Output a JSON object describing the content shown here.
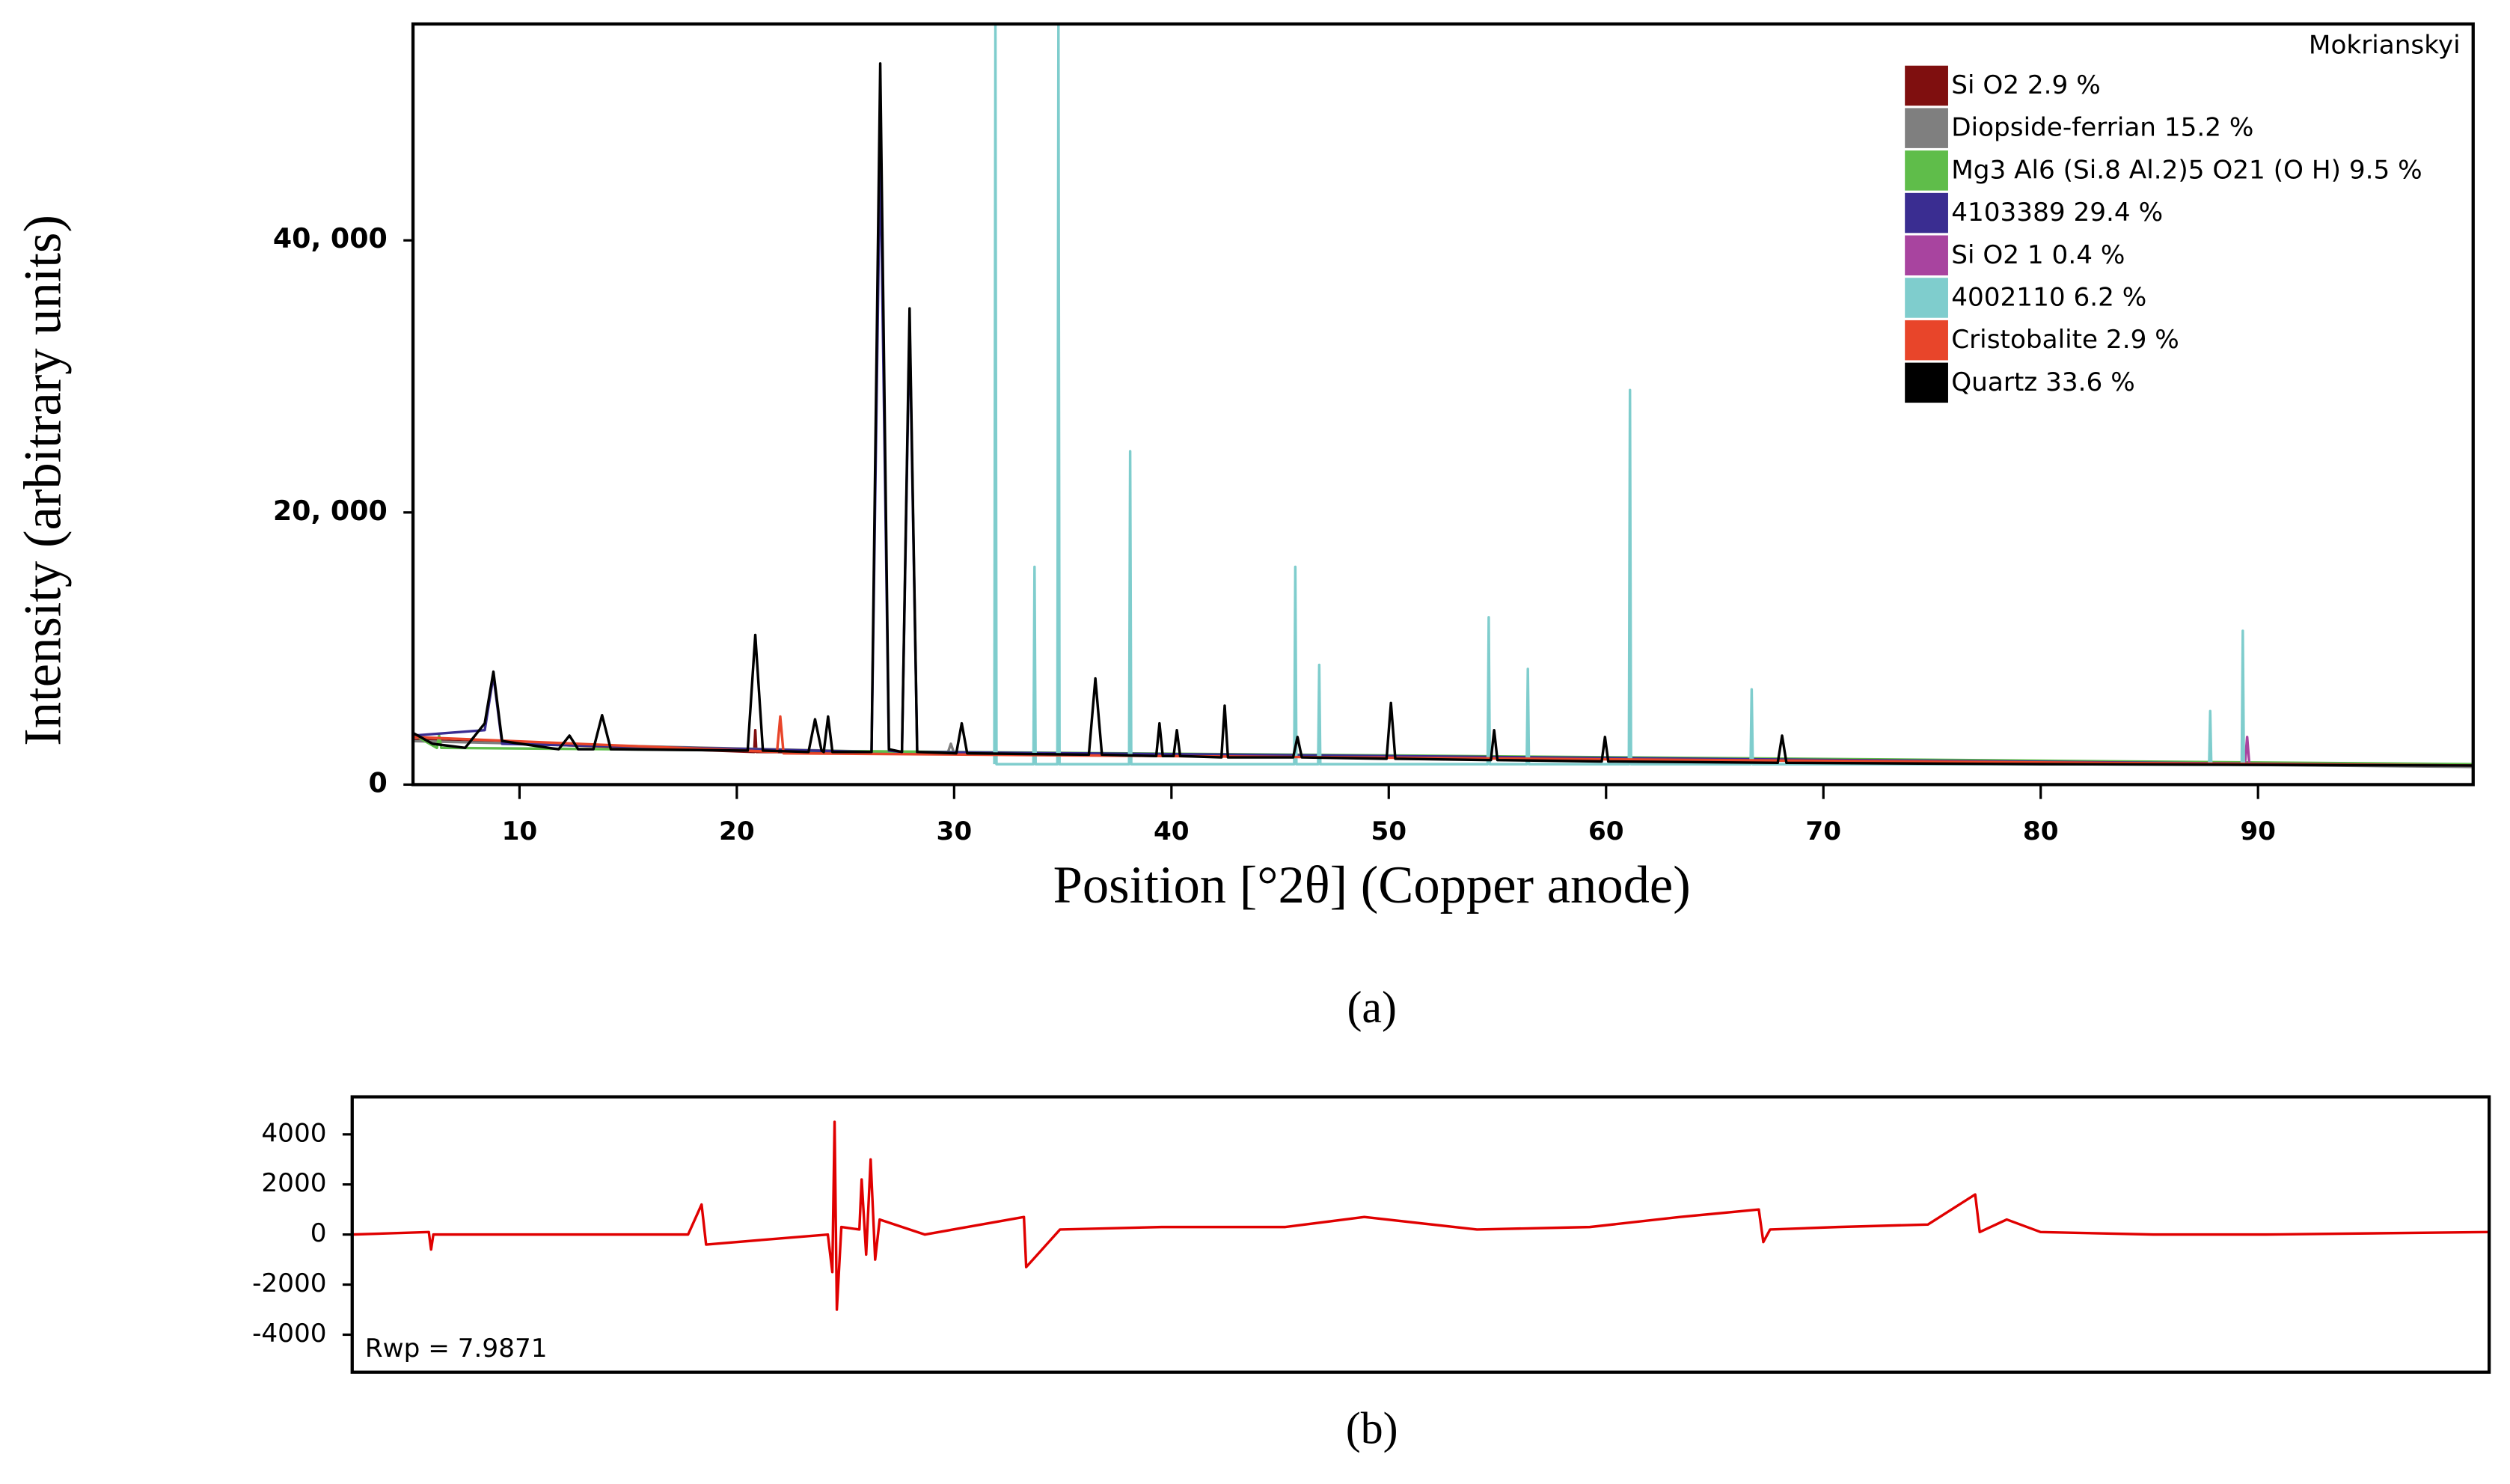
{
  "chart_data": [
    {
      "type": "line",
      "title": "Mokrianskyi",
      "x_label": "Position [°2θ] (Copper anode)",
      "y_label": "Intensity (arbitrary units)",
      "caption": "(a)",
      "xlim": [
        5.1,
        99.9
      ],
      "ylim": [
        0,
        55900
      ],
      "xticks": [
        10,
        20,
        30,
        40,
        50,
        60,
        70,
        80,
        90
      ],
      "yticks": [
        0,
        {
          "value": 20000,
          "label": "20, 000"
        },
        {
          "value": 40000,
          "label": "40, 000"
        }
      ],
      "legend": "upper right",
      "grid": false,
      "series": [
        {
          "name": "Si O2 2.9 %",
          "color": "#7f0f0f",
          "x": [
            5.1,
            20.8,
            20.85,
            20.9,
            99.9
          ],
          "values": [
            3300,
            2400,
            4000,
            2400,
            1400
          ]
        },
        {
          "name": "Diopside-ferrian 15.2 %",
          "color": "#7f7f7f",
          "x": [
            5.1,
            29.7,
            29.85,
            30,
            99.9
          ],
          "values": [
            3200,
            2300,
            3000,
            2300,
            1300
          ]
        },
        {
          "name": "Mg3 Al6 (Si.8 Al.2)5 O21 (O H) 9.5 %",
          "color": "#5fbd4a",
          "x": [
            5.1,
            6.2,
            6.3,
            6.4,
            99.9
          ],
          "values": [
            3700,
            2700,
            3600,
            2700,
            1500
          ]
        },
        {
          "name": "4103389 29.4 %",
          "color": "#3a2d91",
          "x": [
            5.1,
            8.4,
            8.8,
            9.2,
            26.2,
            26.6,
            27,
            27.6,
            27.95,
            28.3,
            99.9
          ],
          "values": [
            3600,
            4000,
            8000,
            3000,
            2400,
            47000,
            2500,
            2400,
            34000,
            2400,
            1400
          ]
        },
        {
          "name": "Si O2 1 0.4 %",
          "color": "#a8449f",
          "x": [
            89.4,
            89.5,
            89.6
          ],
          "values": [
            1500,
            3500,
            1500
          ]
        },
        {
          "name": "4002110 6.2 %",
          "color": "#7fcdcd",
          "x": [
            31.85,
            31.9,
            31.95,
            33.65,
            33.7,
            33.75,
            34.75,
            34.8,
            34.85,
            38.05,
            38.1,
            38.15,
            45.65,
            45.7,
            45.75,
            46.75,
            46.8,
            46.85,
            54.55,
            54.6,
            54.65,
            56.35,
            56.4,
            56.45,
            61.05,
            61.1,
            61.15,
            66.65,
            66.7,
            66.75,
            87.75,
            87.8,
            87.85,
            89.25,
            89.3,
            89.35
          ],
          "values": [
            1500,
            55900,
            1500,
            1500,
            16000,
            1500,
            1500,
            55900,
            1500,
            1500,
            24500,
            1500,
            1500,
            16000,
            1500,
            1500,
            8800,
            1500,
            1500,
            12300,
            1500,
            1500,
            8500,
            1500,
            1500,
            29000,
            1500,
            1500,
            7000,
            1500,
            1500,
            5400,
            1500,
            1500,
            11300,
            1500
          ]
        },
        {
          "name": "Cristobalite 2.9 %",
          "color": "#e8452a",
          "x": [
            5.1,
            21.85,
            22,
            22.15,
            99.9
          ],
          "values": [
            3500,
            2400,
            5000,
            2300,
            1400
          ]
        },
        {
          "name": "Quartz 33.6 %",
          "color": "#000000",
          "x": [
            5.1,
            6,
            7.5,
            8.4,
            8.8,
            9.2,
            11.8,
            12.3,
            12.7,
            13.4,
            13.8,
            14.2,
            20.5,
            20.85,
            21.2,
            23.3,
            23.6,
            23.9,
            24,
            24.2,
            24.4,
            26.2,
            26.6,
            27,
            27.6,
            27.95,
            28.3,
            30.1,
            30.35,
            30.6,
            36.2,
            36.5,
            36.8,
            39.3,
            39.45,
            39.6,
            40.1,
            40.25,
            40.4,
            42.3,
            42.45,
            42.6,
            45.6,
            45.8,
            46,
            49.9,
            50.1,
            50.3,
            54.7,
            54.85,
            55,
            59.8,
            59.95,
            60.1,
            67.9,
            68.1,
            68.3,
            80,
            99.9
          ],
          "values": [
            3800,
            3000,
            2700,
            4500,
            8300,
            3200,
            2600,
            3600,
            2600,
            2600,
            5100,
            2600,
            2500,
            11000,
            2500,
            2400,
            4800,
            2500,
            2400,
            5000,
            2400,
            2400,
            53000,
            2600,
            2400,
            35000,
            2400,
            2300,
            4500,
            2300,
            2200,
            7800,
            2200,
            2100,
            4500,
            2100,
            2100,
            4000,
            2100,
            2000,
            5800,
            2000,
            2000,
            3500,
            2000,
            1900,
            6000,
            1900,
            1800,
            4000,
            1800,
            1700,
            3500,
            1700,
            1600,
            3600,
            1600,
            1500,
            1400
          ]
        }
      ]
    },
    {
      "type": "line",
      "caption": "(b)",
      "annotation": "Rwp = 7.9871",
      "color": "#e00000",
      "xlim": [
        5.1,
        99.9
      ],
      "ylim": [
        -5500,
        5500
      ],
      "yticks": [
        -4000,
        -2000,
        0,
        2000,
        4000
      ],
      "x": [
        5.1,
        8.5,
        8.6,
        8.7,
        20,
        20.6,
        20.8,
        26.2,
        26.4,
        26.5,
        26.6,
        26.8,
        27.6,
        27.7,
        27.9,
        28.1,
        28.3,
        28.5,
        30.5,
        34.9,
        35,
        36.5,
        41,
        46.5,
        50,
        55,
        60,
        64,
        67.5,
        67.7,
        68,
        71,
        75,
        77.1,
        77.3,
        78.5,
        80,
        85,
        90,
        99.9
      ],
      "values": [
        0,
        100,
        -600,
        0,
        0,
        1200,
        -400,
        0,
        -1500,
        4500,
        -3000,
        300,
        200,
        2200,
        -800,
        3000,
        -1000,
        600,
        0,
        700,
        -1300,
        200,
        300,
        300,
        700,
        200,
        300,
        700,
        1000,
        -300,
        200,
        300,
        400,
        1600,
        100,
        600,
        100,
        0,
        0,
        100
      ]
    }
  ]
}
